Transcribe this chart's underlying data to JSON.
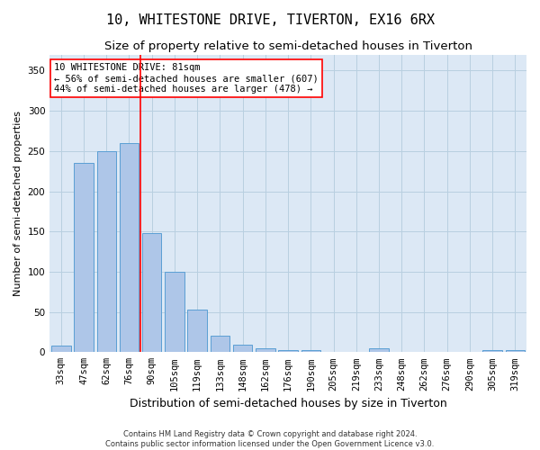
{
  "title": "10, WHITESTONE DRIVE, TIVERTON, EX16 6RX",
  "subtitle": "Size of property relative to semi-detached houses in Tiverton",
  "xlabel": "Distribution of semi-detached houses by size in Tiverton",
  "ylabel": "Number of semi-detached properties",
  "footnote1": "Contains HM Land Registry data © Crown copyright and database right 2024.",
  "footnote2": "Contains public sector information licensed under the Open Government Licence v3.0.",
  "categories": [
    "33sqm",
    "47sqm",
    "62sqm",
    "76sqm",
    "90sqm",
    "105sqm",
    "119sqm",
    "133sqm",
    "148sqm",
    "162sqm",
    "176sqm",
    "190sqm",
    "205sqm",
    "219sqm",
    "233sqm",
    "248sqm",
    "262sqm",
    "276sqm",
    "290sqm",
    "305sqm",
    "319sqm"
  ],
  "values": [
    8,
    235,
    250,
    260,
    148,
    100,
    53,
    20,
    9,
    5,
    3,
    3,
    0,
    0,
    5,
    0,
    0,
    0,
    0,
    3,
    3
  ],
  "bar_color": "#aec6e8",
  "bar_edge_color": "#5a9fd4",
  "red_line_x": 3.5,
  "annotation_text": "10 WHITESTONE DRIVE: 81sqm\n← 56% of semi-detached houses are smaller (607)\n44% of semi-detached houses are larger (478) →",
  "ylim": [
    0,
    370
  ],
  "yticks": [
    0,
    50,
    100,
    150,
    200,
    250,
    300,
    350
  ],
  "background_color": "#ffffff",
  "plot_bg_color": "#dce8f5",
  "grid_color": "#b8cfe0",
  "title_fontsize": 11,
  "subtitle_fontsize": 9.5,
  "xlabel_fontsize": 9,
  "ylabel_fontsize": 8,
  "tick_fontsize": 7.5,
  "annotation_fontsize": 7.5,
  "footnote_fontsize": 6
}
